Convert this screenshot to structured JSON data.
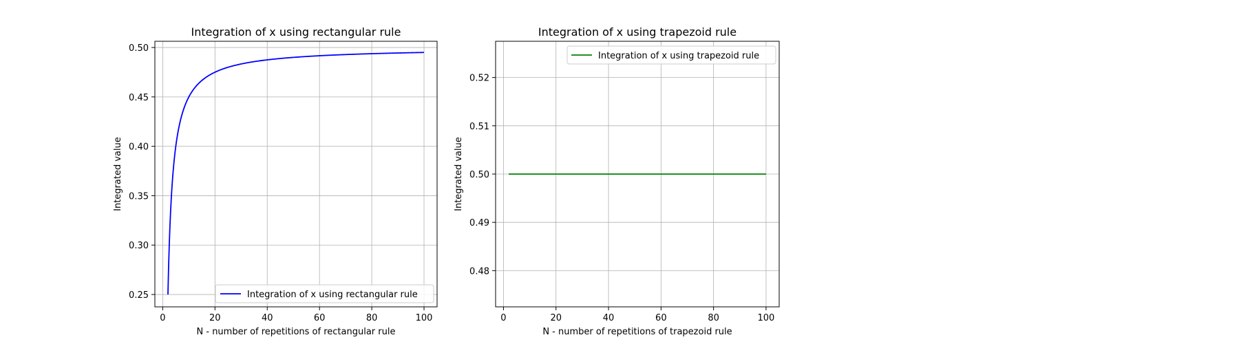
{
  "chart_data": [
    {
      "type": "line",
      "title": "Integration of x using rectangular rule",
      "xlabel": "N - number of repetitions of rectangular rule",
      "ylabel": "Integrated value",
      "xlim": [
        -3,
        105
      ],
      "ylim": [
        0.2375,
        0.5063
      ],
      "xticks": [
        0,
        20,
        40,
        60,
        80,
        100
      ],
      "xtick_labels": [
        "0",
        "20",
        "40",
        "60",
        "80",
        "100"
      ],
      "yticks": [
        0.25,
        0.3,
        0.35,
        0.4,
        0.45,
        0.5
      ],
      "ytick_labels": [
        "0.25",
        "0.30",
        "0.35",
        "0.40",
        "0.45",
        "0.50"
      ],
      "grid": true,
      "legend_position": "lower-right",
      "series": [
        {
          "name": "Integration of x using rectangular rule",
          "color": "#0000ff",
          "formula": "0.5 - 0.5/N",
          "x": [
            2,
            3,
            4,
            5,
            6,
            7,
            8,
            9,
            10,
            12,
            14,
            16,
            18,
            20,
            25,
            30,
            35,
            40,
            50,
            60,
            70,
            80,
            90,
            100
          ],
          "y": [
            0.25,
            0.3333,
            0.375,
            0.4,
            0.4167,
            0.4286,
            0.4375,
            0.4444,
            0.45,
            0.4583,
            0.4643,
            0.4688,
            0.4722,
            0.475,
            0.48,
            0.4833,
            0.4857,
            0.4875,
            0.49,
            0.4917,
            0.4929,
            0.4938,
            0.4944,
            0.495
          ]
        }
      ]
    },
    {
      "type": "line",
      "title": "Integration of x using trapezoid rule",
      "xlabel": "N - number of repetitions of trapezoid rule",
      "ylabel": "Integrated value",
      "xlim": [
        -3,
        105
      ],
      "ylim": [
        0.4725,
        0.5275
      ],
      "xticks": [
        0,
        20,
        40,
        60,
        80,
        100
      ],
      "xtick_labels": [
        "0",
        "20",
        "40",
        "60",
        "80",
        "100"
      ],
      "yticks": [
        0.48,
        0.49,
        0.5,
        0.51,
        0.52
      ],
      "ytick_labels": [
        "0.48",
        "0.49",
        "0.50",
        "0.51",
        "0.52"
      ],
      "grid": true,
      "legend_position": "upper-right",
      "series": [
        {
          "name": "Integration of x using trapezoid rule",
          "color": "#008000",
          "x": [
            2,
            100
          ],
          "y": [
            0.5,
            0.5
          ]
        }
      ]
    }
  ]
}
